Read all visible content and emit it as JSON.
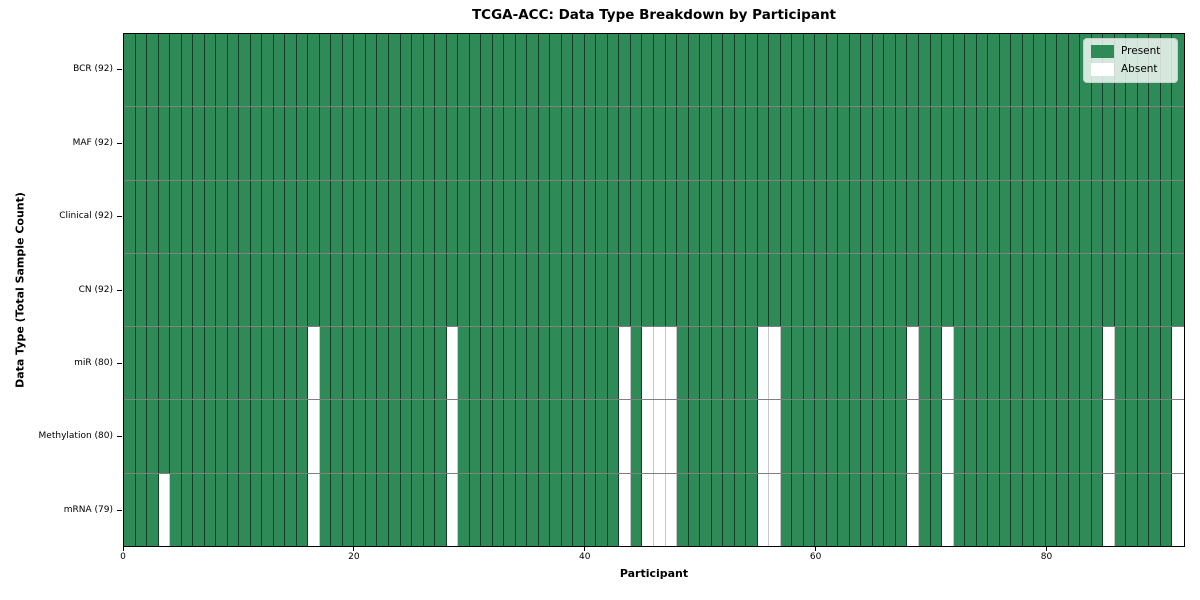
{
  "chart_data": {
    "type": "heatmap",
    "title": "TCGA-ACC: Data Type Breakdown by Participant",
    "xlabel": "Participant",
    "ylabel": "Data Type (Total Sample Count)",
    "n_participants": 92,
    "x_ticks": [
      0,
      20,
      40,
      60,
      80
    ],
    "xlim": [
      0,
      92
    ],
    "grid": false,
    "colors": {
      "present": "#2E8B57",
      "absent": "#FFFFFF",
      "cell_border": "rgba(0,0,0,0.55)",
      "row_separator": "#3c3c3c",
      "frame": "#000000"
    },
    "legend": {
      "position": "upper right",
      "entries": [
        {
          "label": "Present",
          "color": "#2E8B57"
        },
        {
          "label": "Absent",
          "color": "#FFFFFF"
        }
      ]
    },
    "rows": [
      {
        "label": "BCR (92)",
        "data_type": "BCR",
        "total_samples": 92,
        "absent_participants": []
      },
      {
        "label": "MAF (92)",
        "data_type": "MAF",
        "total_samples": 92,
        "absent_participants": []
      },
      {
        "label": "Clinical (92)",
        "data_type": "Clinical",
        "total_samples": 92,
        "absent_participants": []
      },
      {
        "label": "CN (92)",
        "data_type": "CN",
        "total_samples": 92,
        "absent_participants": []
      },
      {
        "label": "miR (80)",
        "data_type": "miR",
        "total_samples": 80,
        "absent_participants": [
          16,
          28,
          43,
          45,
          46,
          47,
          55,
          56,
          68,
          71,
          85,
          91
        ]
      },
      {
        "label": "Methylation (80)",
        "data_type": "Methylation",
        "total_samples": 80,
        "absent_participants": [
          16,
          28,
          43,
          45,
          46,
          47,
          55,
          56,
          68,
          71,
          85,
          91
        ]
      },
      {
        "label": "mRNA (79)",
        "data_type": "mRNA",
        "total_samples": 79,
        "absent_participants": [
          3,
          16,
          28,
          43,
          45,
          46,
          47,
          55,
          56,
          68,
          71,
          85,
          91
        ]
      }
    ]
  }
}
